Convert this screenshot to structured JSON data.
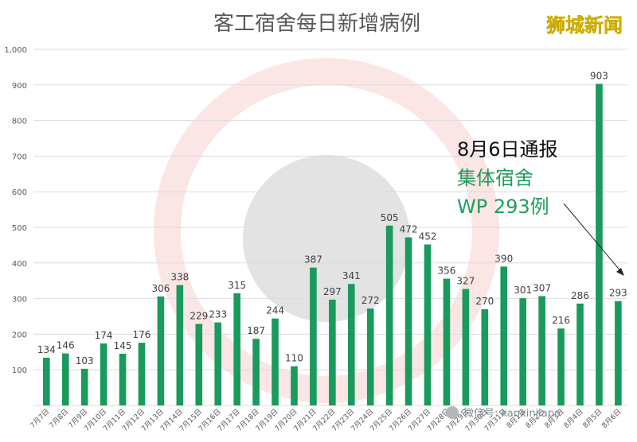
{
  "chart_data": {
    "type": "bar",
    "title": "客工宿舍每日新增病例",
    "brand": "狮城新闻",
    "watermark": "微信号: kanxinjiapo",
    "categories": [
      "7月7日",
      "7月8日",
      "7月9日",
      "7月10日",
      "7月11日",
      "7月12日",
      "7月13日",
      "7月14日",
      "7月15日",
      "7月16日",
      "7月17日",
      "7月18日",
      "7月19日",
      "7月20日",
      "7月21日",
      "7月22日",
      "7月23日",
      "7月24日",
      "7月25日",
      "7月26日",
      "7月27日",
      "7月28日",
      "7月29日",
      "7月30日",
      "7月31日",
      "8月1日",
      "8月2日",
      "8月3日",
      "8月4日",
      "8月5日",
      "8月6日"
    ],
    "values": [
      134,
      146,
      103,
      174,
      145,
      176,
      306,
      338,
      229,
      233,
      315,
      187,
      244,
      110,
      387,
      297,
      341,
      272,
      505,
      472,
      452,
      356,
      327,
      270,
      390,
      301,
      307,
      216,
      286,
      903,
      293
    ],
    "ylim": [
      0,
      1000
    ],
    "yticks": [
      "100",
      "200",
      "300",
      "400",
      "500",
      "600",
      "700",
      "800",
      "900",
      "1,000"
    ],
    "grid": true,
    "bar_color": "#1a9a5c",
    "annotation": {
      "line1": "8月6日通报",
      "line2": "集体宿舍",
      "line3": "WP 293例"
    }
  }
}
